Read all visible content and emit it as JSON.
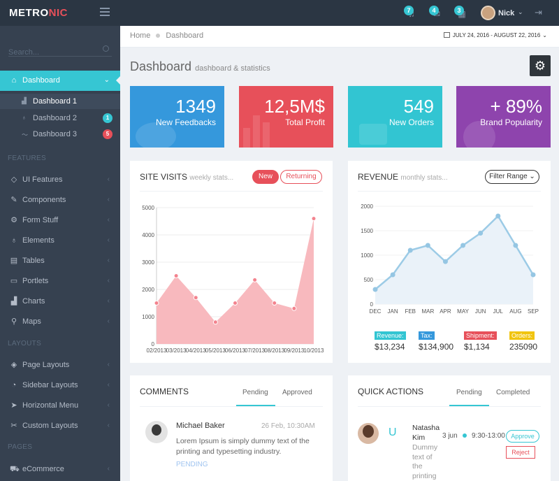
{
  "app": {
    "logo_part1": "METRO",
    "logo_part2": "NIC"
  },
  "topbar": {
    "notifications": [
      {
        "count": "7",
        "icon": "bell-icon"
      },
      {
        "count": "4",
        "icon": "envelope-icon"
      },
      {
        "count": "3",
        "icon": "calendar-icon"
      }
    ],
    "user": {
      "name": "Nick",
      "chevron": "⌄"
    },
    "logout_icon": "logout-icon"
  },
  "sidebar": {
    "search_placeholder": "Search...",
    "dashboard": {
      "label": "Dashboard",
      "chevron": "⌄"
    },
    "sub_items": [
      {
        "label": "Dashboard 1",
        "icon": "bar-chart-icon"
      },
      {
        "label": "Dashboard 2",
        "icon": "bulb-icon",
        "badge": "1",
        "badge_color": "#36c6d3"
      },
      {
        "label": "Dashboard 3",
        "icon": "graph-icon",
        "badge": "5",
        "badge_color": "#e7505a"
      }
    ],
    "headings": {
      "features": "FEATURES",
      "layouts": "LAYOUTS",
      "pages": "PAGES"
    },
    "feature_items": [
      {
        "label": "UI Features",
        "icon": "diamond-icon"
      },
      {
        "label": "Components",
        "icon": "puzzle-icon"
      },
      {
        "label": "Form Stuff",
        "icon": "settings-icon"
      },
      {
        "label": "Elements",
        "icon": "bulb-icon"
      },
      {
        "label": "Tables",
        "icon": "briefcase-icon"
      },
      {
        "label": "Portlets",
        "icon": "wallet-icon"
      },
      {
        "label": "Charts",
        "icon": "bar-chart-icon"
      },
      {
        "label": "Maps",
        "icon": "pointer-icon"
      }
    ],
    "layout_items": [
      {
        "label": "Page Layouts",
        "icon": "layers-icon"
      },
      {
        "label": "Sidebar Layouts",
        "icon": "feed-icon"
      },
      {
        "label": "Horizontal Menu",
        "icon": "paper-plane-icon"
      },
      {
        "label": "Custom Layouts",
        "icon": "wrench-icon"
      }
    ],
    "page_items": [
      {
        "label": "eCommerce",
        "icon": "basket-icon"
      }
    ],
    "chevron_left": "‹"
  },
  "breadcrumb": {
    "home": "Home",
    "current": "Dashboard"
  },
  "date_range": {
    "label": "JULY 24, 2016 - AUGUST 22, 2016",
    "chevron": "⌄"
  },
  "page_title": {
    "title": "Dashboard",
    "subtitle": "dashboard & statistics"
  },
  "tiles": [
    {
      "number": "1349",
      "desc": "New Feedbacks",
      "color": "#3598dc"
    },
    {
      "number": "12,5M$",
      "desc": "Total Profit",
      "color": "#e7505a"
    },
    {
      "number": "549",
      "desc": "New Orders",
      "color": "#32c5d2"
    },
    {
      "number": "+ 89%",
      "desc": "Brand Popularity",
      "color": "#8e44ad"
    }
  ],
  "site_visits": {
    "title": "SITE VISITS",
    "caption": "weekly stats...",
    "btn_new": "New",
    "btn_returning": "Returning",
    "chart_data": {
      "type": "area",
      "x": [
        "02/2013",
        "03/2013",
        "04/2013",
        "05/2013",
        "06/2013",
        "07/2013",
        "08/2013",
        "09/2013",
        "10/2013"
      ],
      "x_tick_labels": [
        "02/2013",
        "03/2013",
        "04/2013",
        "05/2013",
        "06/2013",
        "07/2013",
        "08/2013",
        "09/2013",
        "10/2013"
      ],
      "values": [
        1500,
        2500,
        1700,
        800,
        1500,
        2350,
        1500,
        1300,
        4600
      ],
      "ylim": [
        0,
        5000
      ],
      "yticks": [
        0,
        1000,
        2000,
        3000,
        4000,
        5000
      ],
      "color": "#f8b9be",
      "point_color": "#f3838e",
      "grid": true
    }
  },
  "revenue": {
    "title": "REVENUE",
    "caption": "monthly stats...",
    "filter_label": "Filter Range",
    "chart_data": {
      "type": "area",
      "categories": [
        "DEC",
        "JAN",
        "FEB",
        "MAR",
        "APR",
        "MAY",
        "JUN",
        "JUL",
        "AUG",
        "SEP"
      ],
      "values": [
        300,
        600,
        1100,
        1200,
        870,
        1200,
        1450,
        1800,
        1200,
        600
      ],
      "ylim": [
        0,
        2000
      ],
      "yticks": [
        0,
        500,
        1000,
        1500,
        2000
      ],
      "line_color": "#9ccbe6",
      "fill_color": "#eaf2f9",
      "point_color": "#95c6e3",
      "grid": true
    },
    "stats": [
      {
        "label": "Revenue:",
        "value": "$13,234",
        "color": "#32c5d2"
      },
      {
        "label": "Tax:",
        "value": "$134,900",
        "color": "#3598dc"
      },
      {
        "label": "Shipment:",
        "value": "$1,134",
        "color": "#e7505a"
      },
      {
        "label": "Orders:",
        "value": "235090",
        "color": "#f1c40f"
      }
    ]
  },
  "comments": {
    "title": "COMMENTS",
    "tab_pending": "Pending",
    "tab_approved": "Approved",
    "item": {
      "name": "Michael Baker",
      "date": "26 Feb, 10:30AM",
      "text": "Lorem Ipsum is simply dummy text of the printing and typesetting industry.",
      "status": "PENDING"
    }
  },
  "quick_actions": {
    "title": "QUICK ACTIONS",
    "tab_pending": "Pending",
    "tab_completed": "Completed",
    "item": {
      "name": "Natasha Kim",
      "text": "Dummy text of the printing",
      "date": "3 jun",
      "time": "9:30-13:00",
      "approve": "Approve",
      "reject": "Reject"
    }
  }
}
